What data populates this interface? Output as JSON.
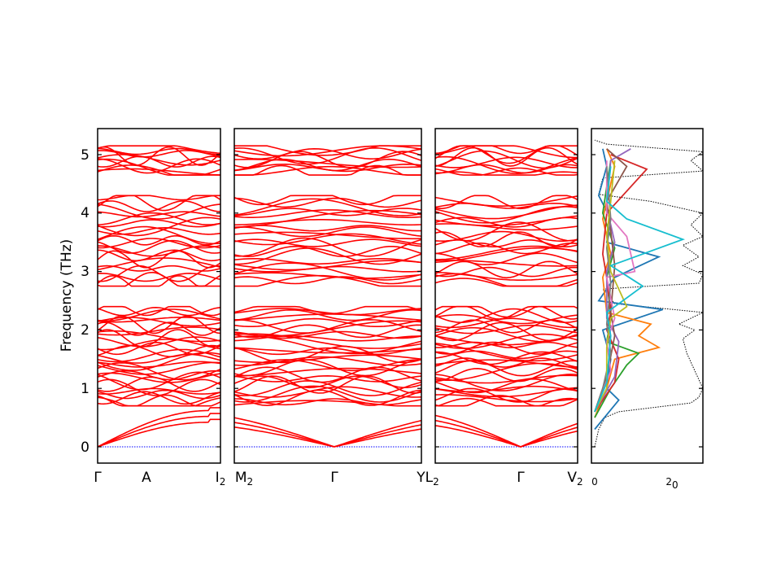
{
  "chart_data": [
    {
      "type": "line",
      "panel": "band-structure-1",
      "ylabel": "Frequency (THz)",
      "ylim": [
        -0.28,
        5.45
      ],
      "yticks": [
        "0",
        "1",
        "2",
        "3",
        "4",
        "5"
      ],
      "xtick_labels": [
        "Γ",
        "A",
        "I2"
      ],
      "line_color": "#ff0000",
      "zero_line_color": "#0000ff",
      "acoustic_branches_end": [
        0.42,
        0.52,
        0.62
      ],
      "optical_band_groups": [
        {
          "range": [
            0.7,
            2.4
          ],
          "count": 30
        },
        {
          "range": [
            2.75,
            4.3
          ],
          "count": 22
        },
        {
          "range": [
            4.65,
            5.15
          ],
          "count": 10
        }
      ]
    },
    {
      "type": "line",
      "panel": "band-structure-2",
      "xtick_labels": [
        "M2",
        "Γ",
        "YL2"
      ],
      "line_color": "#ff0000",
      "zero_line_color": "#0000ff",
      "acoustic_branches_end": [
        0.42,
        0.52,
        0.62
      ],
      "optical_band_groups": [
        {
          "range": [
            0.7,
            2.4
          ],
          "count": 30
        },
        {
          "range": [
            2.75,
            4.3
          ],
          "count": 22
        },
        {
          "range": [
            4.65,
            5.15
          ],
          "count": 10
        }
      ]
    },
    {
      "type": "line",
      "panel": "band-structure-3",
      "xtick_labels": [
        "Γ",
        "V2"
      ],
      "line_color": "#ff0000",
      "zero_line_color": "#0000ff",
      "acoustic_branches_end": [
        0.42,
        0.52,
        0.62
      ],
      "optical_band_groups": [
        {
          "range": [
            0.7,
            2.4
          ],
          "count": 30
        },
        {
          "range": [
            2.75,
            4.3
          ],
          "count": 22
        },
        {
          "range": [
            4.65,
            5.15
          ],
          "count": 10
        }
      ]
    },
    {
      "type": "line",
      "panel": "density-of-states",
      "xlim": [
        0,
        27
      ],
      "xticks": [
        "0",
        "20"
      ],
      "total_dos_style": "dotted",
      "total_dos": [
        [
          0.0,
          0
        ],
        [
          0.3,
          1
        ],
        [
          0.5,
          2.5
        ],
        [
          0.6,
          6
        ],
        [
          0.75,
          24
        ],
        [
          0.85,
          26
        ],
        [
          1.0,
          27
        ],
        [
          1.3,
          25
        ],
        [
          1.6,
          23
        ],
        [
          1.85,
          22
        ],
        [
          2.0,
          25
        ],
        [
          2.1,
          21
        ],
        [
          2.3,
          27
        ],
        [
          2.45,
          5
        ],
        [
          2.7,
          2
        ],
        [
          2.8,
          26
        ],
        [
          2.95,
          27
        ],
        [
          3.1,
          22
        ],
        [
          3.25,
          26
        ],
        [
          3.45,
          22
        ],
        [
          3.6,
          27
        ],
        [
          3.8,
          24
        ],
        [
          4.0,
          27
        ],
        [
          4.2,
          14
        ],
        [
          4.32,
          1
        ],
        [
          4.6,
          2
        ],
        [
          4.72,
          27
        ],
        [
          4.9,
          24
        ],
        [
          5.05,
          27
        ],
        [
          5.18,
          3
        ],
        [
          5.25,
          0
        ]
      ],
      "series": [
        {
          "color": "#1f77b4",
          "points": [
            [
              0.3,
              0
            ],
            [
              0.8,
              6
            ],
            [
              1.0,
              3
            ],
            [
              1.5,
              4
            ],
            [
              2.0,
              2
            ],
            [
              2.35,
              17
            ],
            [
              2.5,
              1
            ],
            [
              2.9,
              5
            ],
            [
              3.25,
              16
            ],
            [
              3.5,
              3
            ],
            [
              3.9,
              4
            ],
            [
              4.3,
              1
            ],
            [
              4.8,
              3
            ],
            [
              5.1,
              2
            ]
          ]
        },
        {
          "color": "#ff7f0e",
          "points": [
            [
              0.5,
              0
            ],
            [
              1.0,
              3
            ],
            [
              1.5,
              5
            ],
            [
              1.7,
              16
            ],
            [
              1.9,
              11
            ],
            [
              2.1,
              14
            ],
            [
              2.3,
              3
            ],
            [
              2.9,
              2
            ],
            [
              3.3,
              4
            ],
            [
              3.9,
              2
            ],
            [
              4.8,
              5
            ],
            [
              5.1,
              3
            ]
          ]
        },
        {
          "color": "#2ca02c",
          "points": [
            [
              0.5,
              0
            ],
            [
              1.0,
              4
            ],
            [
              1.4,
              8
            ],
            [
              1.6,
              11
            ],
            [
              1.8,
              3
            ],
            [
              2.2,
              4
            ],
            [
              2.9,
              3
            ],
            [
              3.4,
              5
            ],
            [
              4.0,
              2
            ],
            [
              4.9,
              4
            ]
          ]
        },
        {
          "color": "#d62728",
          "points": [
            [
              0.6,
              0
            ],
            [
              1.1,
              5
            ],
            [
              1.5,
              6
            ],
            [
              2.0,
              3
            ],
            [
              2.3,
              4
            ],
            [
              2.9,
              3
            ],
            [
              3.3,
              2
            ],
            [
              4.0,
              3
            ],
            [
              4.75,
              13
            ],
            [
              5.0,
              4
            ]
          ]
        },
        {
          "color": "#9467bd",
          "points": [
            [
              0.6,
              0
            ],
            [
              1.2,
              5
            ],
            [
              1.8,
              6
            ],
            [
              2.2,
              3
            ],
            [
              3.0,
              3
            ],
            [
              3.5,
              5
            ],
            [
              4.1,
              3
            ],
            [
              4.9,
              4
            ],
            [
              5.1,
              9
            ]
          ]
        },
        {
          "color": "#8c564b",
          "points": [
            [
              0.6,
              0
            ],
            [
              1.2,
              3
            ],
            [
              1.9,
              5
            ],
            [
              2.3,
              4
            ],
            [
              3.1,
              5
            ],
            [
              3.7,
              4
            ],
            [
              4.2,
              3
            ],
            [
              4.8,
              8
            ],
            [
              5.1,
              3
            ]
          ]
        },
        {
          "color": "#e377c2",
          "points": [
            [
              0.6,
              0
            ],
            [
              1.3,
              4
            ],
            [
              1.8,
              3
            ],
            [
              2.2,
              5
            ],
            [
              2.9,
              3
            ],
            [
              3.0,
              10
            ],
            [
              3.6,
              8
            ],
            [
              4.0,
              3
            ],
            [
              4.9,
              3
            ]
          ]
        },
        {
          "color": "#7f7f7f",
          "points": [
            [
              0.6,
              0
            ],
            [
              1.0,
              2
            ],
            [
              1.6,
              4
            ],
            [
              2.1,
              3
            ],
            [
              2.8,
              4
            ],
            [
              3.4,
              3
            ],
            [
              3.9,
              4
            ],
            [
              4.8,
              3
            ]
          ]
        },
        {
          "color": "#bcbd22",
          "points": [
            [
              0.6,
              0
            ],
            [
              1.0,
              3
            ],
            [
              1.7,
              3
            ],
            [
              2.2,
              4
            ],
            [
              2.4,
              8
            ],
            [
              3.0,
              4
            ],
            [
              3.6,
              3
            ],
            [
              4.2,
              4
            ],
            [
              4.9,
              5
            ]
          ]
        },
        {
          "color": "#17becf",
          "points": [
            [
              0.6,
              0
            ],
            [
              1.1,
              3
            ],
            [
              1.9,
              4
            ],
            [
              2.3,
              3
            ],
            [
              2.75,
              12
            ],
            [
              3.1,
              4
            ],
            [
              3.55,
              22
            ],
            [
              3.9,
              8
            ],
            [
              4.2,
              3
            ],
            [
              4.8,
              4
            ]
          ]
        }
      ]
    }
  ]
}
